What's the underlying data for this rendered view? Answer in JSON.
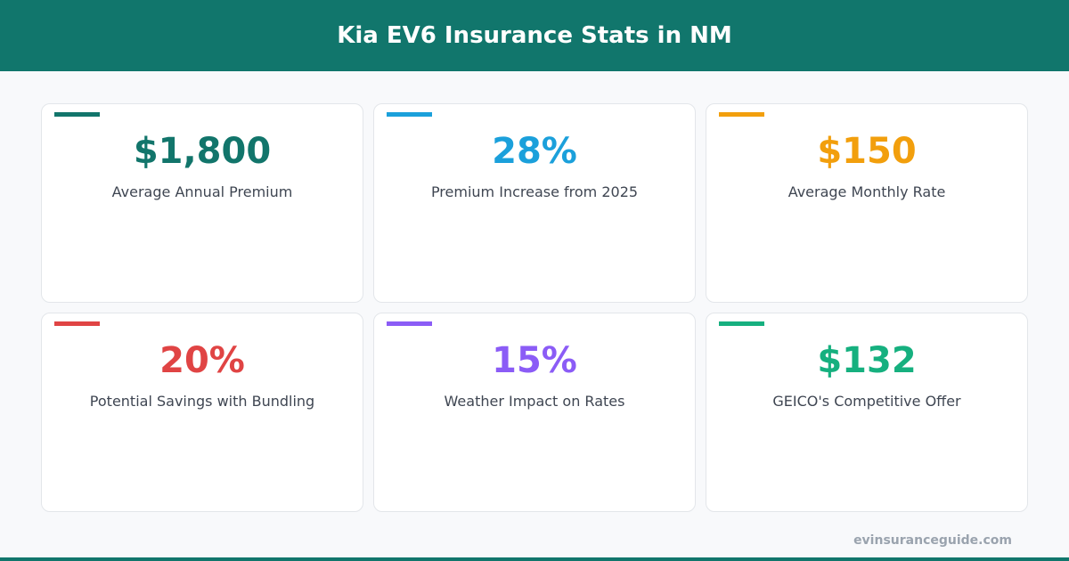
{
  "header": {
    "title": "Kia EV6 Insurance Stats in NM"
  },
  "cards": [
    {
      "value": "$1,800",
      "label": "Average Annual Premium",
      "color": "#12756b"
    },
    {
      "value": "28%",
      "label": "Premium Increase from 2025",
      "color": "#1ba0db"
    },
    {
      "value": "$150",
      "label": "Average Monthly Rate",
      "color": "#f29f0d"
    },
    {
      "value": "20%",
      "label": "Potential Savings with Bundling",
      "color": "#e04444"
    },
    {
      "value": "15%",
      "label": "Weather Impact on Rates",
      "color": "#8b5cf6"
    },
    {
      "value": "$132",
      "label": "GEICO's Competitive Offer",
      "color": "#16b07f"
    }
  ],
  "footer": {
    "site": "evinsuranceguide.com"
  }
}
